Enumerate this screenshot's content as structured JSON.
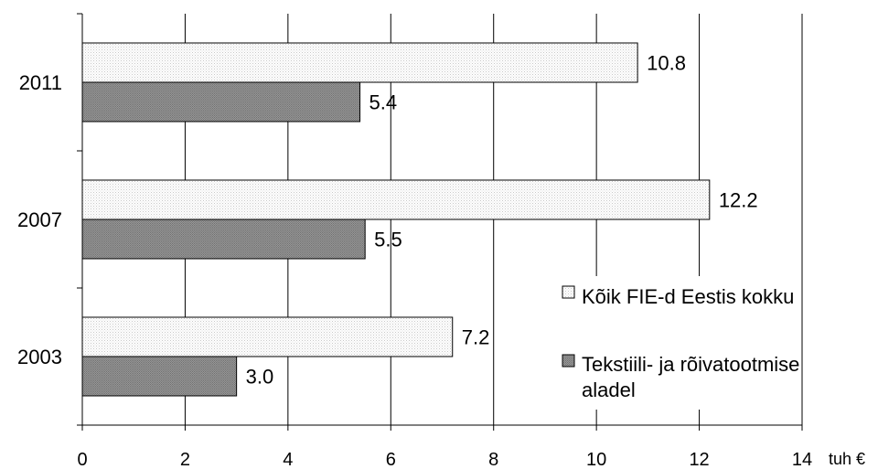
{
  "chart_data": {
    "type": "bar",
    "orientation": "horizontal",
    "categories": [
      "2011",
      "2007",
      "2003"
    ],
    "series": [
      {
        "name": "Kõik FIE-d Eestis kokku",
        "values": [
          10.8,
          12.2,
          7.2
        ],
        "labels": [
          "10.8",
          "12.2",
          "7.2"
        ],
        "color": "#f2f2f2"
      },
      {
        "name": "Tekstiili- ja rõivatootmise aladel",
        "values": [
          5.4,
          5.5,
          3.0
        ],
        "labels": [
          "5.4",
          "5.5",
          "3.0"
        ],
        "color": "#8c8c8c"
      }
    ],
    "xlim": [
      0,
      14
    ],
    "xticks": [
      "0",
      "2",
      "4",
      "6",
      "8",
      "10",
      "12",
      "14"
    ],
    "xunit": "tuh €",
    "grid": true,
    "legend": {
      "position": "right",
      "entries": [
        {
          "lines": [
            "Kõik FIE-d Eestis kokku"
          ]
        },
        {
          "lines": [
            "Tekstiili- ja rõivatootmise",
            "aladel"
          ]
        }
      ]
    },
    "title": "",
    "xlabel": "",
    "ylabel": ""
  }
}
